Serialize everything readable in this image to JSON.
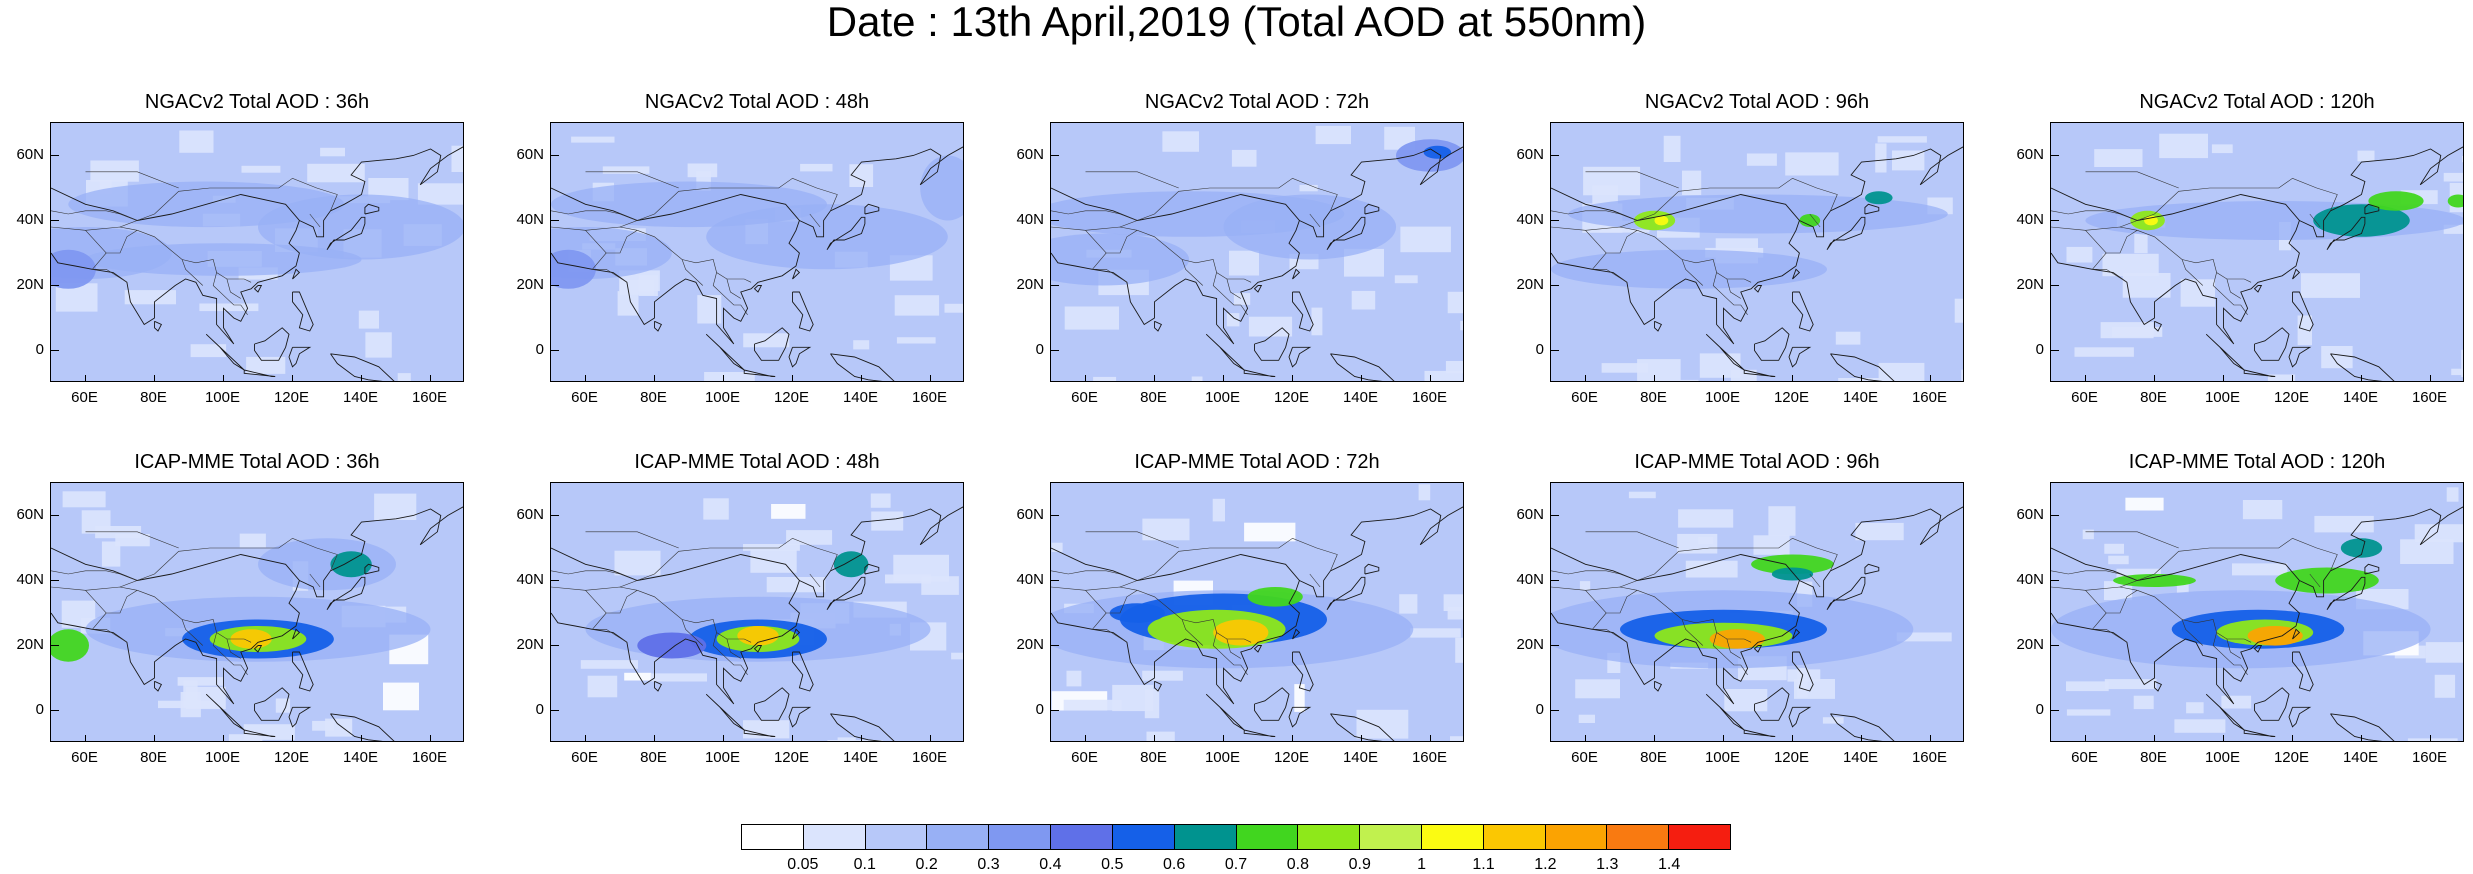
{
  "title": "Date : 13th April,2019 (Total AOD at 550nm)",
  "lat_labels": [
    "60N",
    "40N",
    "20N",
    "0"
  ],
  "lon_labels": [
    "60E",
    "80E",
    "100E",
    "120E",
    "140E",
    "160E"
  ],
  "panels": [
    {
      "title": "NGACv2 Total AOD : 36h",
      "model": "NGACv2",
      "lead": "36h"
    },
    {
      "title": "NGACv2 Total AOD : 48h",
      "model": "NGACv2",
      "lead": "48h"
    },
    {
      "title": "NGACv2 Total AOD : 72h",
      "model": "NGACv2",
      "lead": "72h"
    },
    {
      "title": "NGACv2 Total AOD : 96h",
      "model": "NGACv2",
      "lead": "96h"
    },
    {
      "title": "NGACv2 Total AOD : 120h",
      "model": "NGACv2",
      "lead": "120h"
    },
    {
      "title": "ICAP-MME Total AOD : 36h",
      "model": "ICAP-MME",
      "lead": "36h"
    },
    {
      "title": "ICAP-MME Total AOD : 48h",
      "model": "ICAP-MME",
      "lead": "48h"
    },
    {
      "title": "ICAP-MME Total AOD : 72h",
      "model": "ICAP-MME",
      "lead": "72h"
    },
    {
      "title": "ICAP-MME Total AOD : 96h",
      "model": "ICAP-MME",
      "lead": "96h"
    },
    {
      "title": "ICAP-MME Total AOD : 120h",
      "model": "ICAP-MME",
      "lead": "120h"
    }
  ],
  "colorbar": {
    "labels": [
      "0.05",
      "0.1",
      "0.2",
      "0.3",
      "0.4",
      "0.5",
      "0.6",
      "0.7",
      "0.8",
      "0.9",
      "1",
      "1.1",
      "1.2",
      "1.3",
      "1.4"
    ],
    "colors": [
      "#ffffff",
      "#dbe4fd",
      "#b7c8f9",
      "#98b0f5",
      "#7f98f1",
      "#5f70e8",
      "#1560e8",
      "#00938f",
      "#41d61f",
      "#8ee81a",
      "#c1f14e",
      "#fbfb12",
      "#fbc702",
      "#fba302",
      "#f97a11",
      "#f51e10"
    ]
  }
}
